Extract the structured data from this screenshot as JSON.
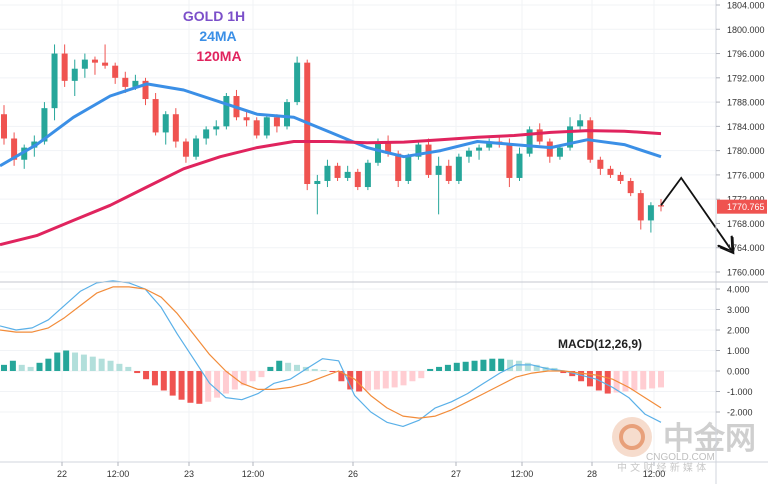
{
  "chart_data": [
    {
      "type": "candlestick",
      "title": "GOLD 1H",
      "ylim": [
        1758.0,
        1806.0
      ],
      "y_ticks": [
        1804.0,
        1800.0,
        1796.0,
        1792.0,
        1788.0,
        1784.0,
        1780.0,
        1776.0,
        1772.0,
        1768.0,
        1764.0,
        1760.0
      ],
      "y_tick_labels": [
        "1804.000",
        "1800.000",
        "1796.000",
        "1792.000",
        "1788.000",
        "1784.000",
        "1780.000",
        "1776.000",
        "1772.000",
        "1768.000",
        "1764.000",
        "1760.000"
      ],
      "last_price_label": "1770.765",
      "last_price": 1770.765,
      "x_tick_labels": [
        "22",
        "12:00",
        "23",
        "12:00",
        "26",
        "27",
        "12:00",
        "28",
        "12:00"
      ],
      "series": [
        {
          "name": "24MA",
          "color": "#3b8fe6",
          "values": [
            1777.5,
            1781.0,
            1785.5,
            1789.0,
            1791.0,
            1790.0,
            1788.0,
            1786.0,
            1785.5,
            1783.0,
            1780.5,
            1779.0,
            1780.0,
            1781.5,
            1781.0,
            1780.5,
            1781.8,
            1781.0,
            1779.0
          ]
        },
        {
          "name": "120MA",
          "color": "#e0245e",
          "values": [
            1764.5,
            1766.0,
            1768.5,
            1771.0,
            1774.0,
            1777.0,
            1779.0,
            1780.5,
            1781.5,
            1781.5,
            1781.3,
            1781.4,
            1781.8,
            1782.2,
            1782.5,
            1783.0,
            1783.3,
            1783.2,
            1782.8
          ]
        }
      ],
      "candles": [
        [
          1786.0,
          1787.5,
          1781.0,
          1782.0
        ],
        [
          1782.0,
          1783.0,
          1777.5,
          1778.5
        ],
        [
          1778.5,
          1781.0,
          1777.0,
          1780.5
        ],
        [
          1780.5,
          1782.5,
          1779.0,
          1781.5
        ],
        [
          1781.5,
          1788.0,
          1781.0,
          1787.0
        ],
        [
          1787.0,
          1797.5,
          1785.0,
          1796.0
        ],
        [
          1796.0,
          1797.5,
          1790.5,
          1791.5
        ],
        [
          1791.5,
          1795.0,
          1789.0,
          1793.5
        ],
        [
          1793.5,
          1796.0,
          1792.0,
          1795.0
        ],
        [
          1795.0,
          1795.5,
          1792.5,
          1794.5
        ],
        [
          1794.5,
          1797.5,
          1793.5,
          1794.0
        ],
        [
          1794.0,
          1794.5,
          1791.0,
          1792.0
        ],
        [
          1792.0,
          1793.0,
          1789.5,
          1790.5
        ],
        [
          1790.5,
          1792.5,
          1790.0,
          1791.5
        ],
        [
          1791.5,
          1792.0,
          1787.5,
          1788.5
        ],
        [
          1788.5,
          1789.5,
          1782.5,
          1783.0
        ],
        [
          1783.0,
          1786.5,
          1781.0,
          1786.0
        ],
        [
          1786.0,
          1787.0,
          1780.5,
          1781.5
        ],
        [
          1781.5,
          1782.0,
          1778.0,
          1779.0
        ],
        [
          1779.0,
          1782.5,
          1778.5,
          1782.0
        ],
        [
          1782.0,
          1784.0,
          1781.0,
          1783.5
        ],
        [
          1783.5,
          1785.0,
          1782.5,
          1784.0
        ],
        [
          1784.0,
          1789.5,
          1783.5,
          1789.0
        ],
        [
          1789.0,
          1790.0,
          1785.0,
          1785.5
        ],
        [
          1785.5,
          1786.5,
          1784.0,
          1785.0
        ],
        [
          1785.0,
          1785.5,
          1782.0,
          1782.5
        ],
        [
          1782.5,
          1786.0,
          1782.0,
          1785.5
        ],
        [
          1785.5,
          1786.0,
          1783.0,
          1784.0
        ],
        [
          1784.0,
          1788.5,
          1783.5,
          1788.0
        ],
        [
          1788.0,
          1795.5,
          1787.5,
          1794.5
        ],
        [
          1794.5,
          1795.0,
          1773.5,
          1774.5
        ],
        [
          1774.5,
          1776.0,
          1769.5,
          1775.0
        ],
        [
          1775.0,
          1778.5,
          1774.0,
          1777.5
        ],
        [
          1777.5,
          1778.0,
          1775.0,
          1775.5
        ],
        [
          1775.5,
          1777.5,
          1775.0,
          1776.5
        ],
        [
          1776.5,
          1777.0,
          1773.5,
          1774.0
        ],
        [
          1774.0,
          1778.5,
          1773.5,
          1778.0
        ],
        [
          1778.0,
          1782.0,
          1777.5,
          1781.5
        ],
        [
          1781.5,
          1782.5,
          1779.0,
          1779.5
        ],
        [
          1779.5,
          1780.0,
          1774.0,
          1775.0
        ],
        [
          1775.0,
          1779.5,
          1774.5,
          1779.0
        ],
        [
          1779.0,
          1781.5,
          1778.5,
          1781.0
        ],
        [
          1781.0,
          1782.0,
          1775.5,
          1776.0
        ],
        [
          1776.0,
          1779.0,
          1769.5,
          1777.5
        ],
        [
          1777.5,
          1778.5,
          1774.5,
          1775.0
        ],
        [
          1775.0,
          1779.5,
          1774.5,
          1779.0
        ],
        [
          1779.0,
          1780.5,
          1778.0,
          1780.0
        ],
        [
          1780.0,
          1781.0,
          1778.5,
          1780.5
        ],
        [
          1780.5,
          1782.0,
          1780.0,
          1781.5
        ],
        [
          1781.5,
          1782.5,
          1780.5,
          1781.0
        ],
        [
          1781.0,
          1782.0,
          1774.0,
          1775.5
        ],
        [
          1775.5,
          1780.5,
          1775.0,
          1779.5
        ],
        [
          1779.5,
          1784.0,
          1779.0,
          1783.5
        ],
        [
          1783.5,
          1784.5,
          1781.0,
          1781.5
        ],
        [
          1781.5,
          1782.0,
          1778.0,
          1779.0
        ],
        [
          1779.0,
          1781.0,
          1778.5,
          1780.5
        ],
        [
          1780.5,
          1785.5,
          1780.0,
          1784.0
        ],
        [
          1784.0,
          1786.0,
          1783.0,
          1785.0
        ],
        [
          1785.0,
          1785.5,
          1778.0,
          1778.5
        ],
        [
          1778.5,
          1779.0,
          1776.0,
          1777.0
        ],
        [
          1777.0,
          1777.5,
          1775.5,
          1776.0
        ],
        [
          1776.0,
          1776.5,
          1774.5,
          1775.0
        ],
        [
          1775.0,
          1775.5,
          1772.5,
          1773.0
        ],
        [
          1773.0,
          1773.5,
          1767.0,
          1768.5
        ],
        [
          1768.5,
          1771.5,
          1766.5,
          1771.0
        ],
        [
          1771.0,
          1772.0,
          1770.0,
          1770.8
        ]
      ],
      "forecast_path": [
        {
          "bar": 65,
          "price": 1771.0
        },
        {
          "bar": 67,
          "price": 1775.5
        },
        {
          "bar": 72,
          "price": 1763.5
        }
      ]
    },
    {
      "type": "bar",
      "title": "MACD(12,26,9)",
      "ylim": [
        -4.6,
        4.3
      ],
      "y_ticks": [
        4.0,
        3.0,
        2.0,
        1.0,
        0.0,
        -1.0,
        -2.0
      ],
      "y_tick_labels": [
        "4.000",
        "3.000",
        "2.000",
        "1.000",
        "0.000",
        "-1.000",
        "-2.000"
      ],
      "colors": {
        "pos_up": "#26a69a",
        "pos_down": "#b2dfdb",
        "neg_down": "#ef5350",
        "neg_up": "#ffcdd2"
      },
      "histogram": [
        0.3,
        0.5,
        0.3,
        0.2,
        0.4,
        0.6,
        0.9,
        1.0,
        0.9,
        0.8,
        0.7,
        0.6,
        0.5,
        0.35,
        0.2,
        -0.1,
        -0.4,
        -0.7,
        -0.95,
        -1.2,
        -1.4,
        -1.55,
        -1.6,
        -1.5,
        -1.3,
        -1.1,
        -0.9,
        -0.7,
        -0.5,
        -0.3,
        0.2,
        0.5,
        0.4,
        0.3,
        0.2,
        0.1,
        0.05,
        -0.05,
        -0.5,
        -0.9,
        -1.0,
        -0.95,
        -0.9,
        -0.85,
        -0.8,
        -0.7,
        -0.5,
        -0.35,
        0.1,
        0.2,
        0.3,
        0.4,
        0.45,
        0.5,
        0.55,
        0.6,
        0.6,
        0.55,
        0.5,
        0.4,
        0.3,
        0.2,
        0.15,
        -0.1,
        -0.25,
        -0.5,
        -0.75,
        -0.95,
        -1.1,
        -1.05,
        -1.0,
        -0.95,
        -0.9,
        -0.85,
        -0.8
      ],
      "series": [
        {
          "name": "MACD",
          "color": "#5ab0e8",
          "values": [
            2.2,
            2.0,
            2.1,
            2.5,
            3.2,
            3.9,
            4.3,
            4.4,
            4.3,
            4.0,
            3.1,
            1.8,
            0.6,
            -0.6,
            -1.3,
            -1.4,
            -1.1,
            -0.6,
            -0.4,
            0.1,
            0.6,
            0.5,
            -1.2,
            -2.0,
            -2.5,
            -2.7,
            -2.4,
            -1.8,
            -1.5,
            -1.1,
            -0.6,
            -0.1,
            0.3,
            0.3,
            0.1,
            0.0,
            -0.2,
            -0.4,
            -0.8,
            -1.3,
            -2.1,
            -2.5
          ]
        },
        {
          "name": "Signal",
          "color": "#f28c3a",
          "values": [
            2.0,
            1.9,
            1.9,
            2.1,
            2.6,
            3.2,
            3.8,
            4.1,
            4.1,
            4.0,
            3.6,
            2.8,
            1.8,
            0.8,
            0.0,
            -0.6,
            -0.9,
            -0.9,
            -0.8,
            -0.6,
            -0.3,
            0.0,
            -0.4,
            -1.2,
            -1.8,
            -2.2,
            -2.3,
            -2.2,
            -1.9,
            -1.5,
            -1.1,
            -0.7,
            -0.3,
            -0.1,
            0.0,
            0.0,
            -0.1,
            -0.2,
            -0.4,
            -0.8,
            -1.3,
            -1.8
          ]
        }
      ]
    }
  ],
  "legend": {
    "title": "GOLD 1H",
    "ma24": "24MA",
    "ma120": "120MA",
    "title_color": "#7b4fc9",
    "ma24_color": "#3b8fe6",
    "ma120_color": "#e0245e"
  },
  "macd_label": "MACD(12,26,9)",
  "watermark": {
    "brand_cn": "中金网",
    "brand_en": "CNGOLD.COM",
    "tagline": "中 文 财 经 新 媒 体",
    "color": "#c9c9c9",
    "accent": "#e8a07a"
  }
}
